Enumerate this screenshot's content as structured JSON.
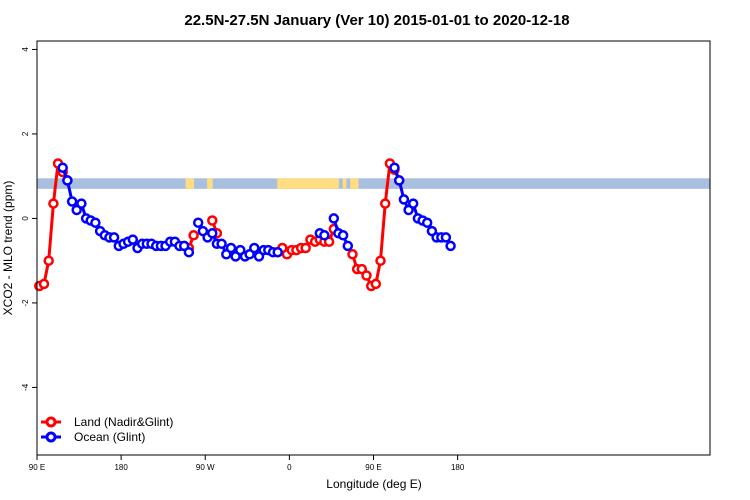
{
  "colors": {
    "land": "#ff0000",
    "ocean": "#0000ff",
    "band_ocean": "#a8bfe0",
    "band_land": "#ffdd80"
  },
  "chart_data": {
    "type": "line",
    "title": "22.5N-27.5N January (Ver 10)   2015-01-01 to 2020-12-18",
    "xlabel": "Longitude (deg E)",
    "ylabel": "XCO2 - MLO trend (ppm)",
    "xlim": [
      0,
      720
    ],
    "ylim": [
      -5.6,
      4.2
    ],
    "x_ticks": [
      {
        "x": 0,
        "label": "90 E"
      },
      {
        "x": 90,
        "label": "180"
      },
      {
        "x": 180,
        "label": "90 W"
      },
      {
        "x": 270,
        "label": "0"
      },
      {
        "x": 360,
        "label": "90 E"
      },
      {
        "x": 450,
        "label": "180"
      }
    ],
    "y_ticks": [
      -4,
      -2,
      0,
      2,
      4
    ],
    "band": {
      "y_top": 0.95,
      "y_bottom": 0.7
    },
    "band_land_segments": [
      [
        159,
        168
      ],
      [
        182,
        188
      ],
      [
        257,
        323
      ],
      [
        327,
        331
      ],
      [
        335,
        344
      ]
    ],
    "series": [
      {
        "name": "Land (Nadir&Glint)",
        "color_key": "land",
        "segments": [
          [
            [
              2.5,
              -1.6
            ],
            [
              7.5,
              -1.55
            ],
            [
              12.5,
              -1.0
            ],
            [
              17.5,
              0.35
            ],
            [
              22.5,
              1.3
            ],
            [
              27.5,
              1.1
            ],
            [
              32.5,
              0.9
            ]
          ],
          [
            [
              162.5,
              -0.7
            ],
            [
              167.5,
              -0.4
            ]
          ],
          [
            [
              187.5,
              -0.05
            ],
            [
              192.5,
              -0.35
            ]
          ],
          [
            [
              257.5,
              -0.8
            ],
            [
              262.5,
              -0.7
            ],
            [
              267.5,
              -0.85
            ],
            [
              272.5,
              -0.75
            ],
            [
              277.5,
              -0.75
            ],
            [
              282.5,
              -0.7
            ],
            [
              287.5,
              -0.7
            ],
            [
              292.5,
              -0.5
            ],
            [
              297.5,
              -0.55
            ],
            [
              302.5,
              -0.5
            ],
            [
              307.5,
              -0.55
            ],
            [
              312.5,
              -0.55
            ],
            [
              317.5,
              -0.25
            ]
          ],
          [
            [
              337.5,
              -0.85
            ],
            [
              342.5,
              -1.2
            ],
            [
              347.5,
              -1.2
            ],
            [
              352.5,
              -1.35
            ],
            [
              357.5,
              -1.6
            ],
            [
              362.5,
              -1.55
            ],
            [
              367.5,
              -1.0
            ],
            [
              372.5,
              0.35
            ],
            [
              377.5,
              1.3
            ],
            [
              382.5,
              1.15
            ],
            [
              387.5,
              0.9
            ]
          ]
        ]
      },
      {
        "name": "Ocean (Glint)",
        "color_key": "ocean",
        "segments": [
          [
            [
              27.5,
              1.2
            ],
            [
              32.5,
              0.9
            ],
            [
              37.5,
              0.4
            ],
            [
              42.5,
              0.2
            ],
            [
              47.5,
              0.35
            ],
            [
              52.5,
              0.0
            ],
            [
              57.5,
              -0.05
            ],
            [
              62.5,
              -0.1
            ],
            [
              67.5,
              -0.3
            ],
            [
              72.5,
              -0.4
            ],
            [
              77.5,
              -0.45
            ],
            [
              82.5,
              -0.45
            ],
            [
              87.5,
              -0.65
            ],
            [
              92.5,
              -0.6
            ],
            [
              97.5,
              -0.55
            ],
            [
              102.5,
              -0.5
            ],
            [
              107.5,
              -0.7
            ],
            [
              112.5,
              -0.6
            ],
            [
              117.5,
              -0.6
            ],
            [
              122.5,
              -0.6
            ],
            [
              127.5,
              -0.65
            ],
            [
              132.5,
              -0.65
            ],
            [
              137.5,
              -0.65
            ],
            [
              142.5,
              -0.55
            ],
            [
              147.5,
              -0.55
            ],
            [
              152.5,
              -0.65
            ],
            [
              157.5,
              -0.65
            ],
            [
              162.5,
              -0.8
            ]
          ],
          [
            [
              172.5,
              -0.1
            ],
            [
              177.5,
              -0.3
            ],
            [
              182.5,
              -0.45
            ],
            [
              187.5,
              -0.35
            ],
            [
              192.5,
              -0.6
            ],
            [
              197.5,
              -0.6
            ],
            [
              202.5,
              -0.85
            ],
            [
              207.5,
              -0.7
            ],
            [
              212.5,
              -0.9
            ],
            [
              217.5,
              -0.75
            ],
            [
              222.5,
              -0.9
            ],
            [
              227.5,
              -0.85
            ],
            [
              232.5,
              -0.7
            ],
            [
              237.5,
              -0.9
            ],
            [
              242.5,
              -0.75
            ],
            [
              247.5,
              -0.75
            ],
            [
              252.5,
              -0.8
            ],
            [
              257.5,
              -0.8
            ]
          ],
          [
            [
              302.5,
              -0.35
            ],
            [
              307.5,
              -0.4
            ]
          ],
          [
            [
              317.5,
              0.0
            ],
            [
              322.5,
              -0.35
            ],
            [
              327.5,
              -0.4
            ],
            [
              332.5,
              -0.65
            ]
          ],
          [
            [
              382.5,
              1.2
            ],
            [
              387.5,
              0.9
            ],
            [
              392.5,
              0.45
            ],
            [
              397.5,
              0.2
            ],
            [
              402.5,
              0.35
            ],
            [
              407.5,
              0.0
            ],
            [
              412.5,
              -0.05
            ],
            [
              417.5,
              -0.1
            ],
            [
              422.5,
              -0.3
            ],
            [
              427.5,
              -0.45
            ],
            [
              432.5,
              -0.45
            ],
            [
              437.5,
              -0.45
            ],
            [
              442.5,
              -0.65
            ]
          ]
        ]
      }
    ],
    "legend_position": "bottom-left"
  }
}
